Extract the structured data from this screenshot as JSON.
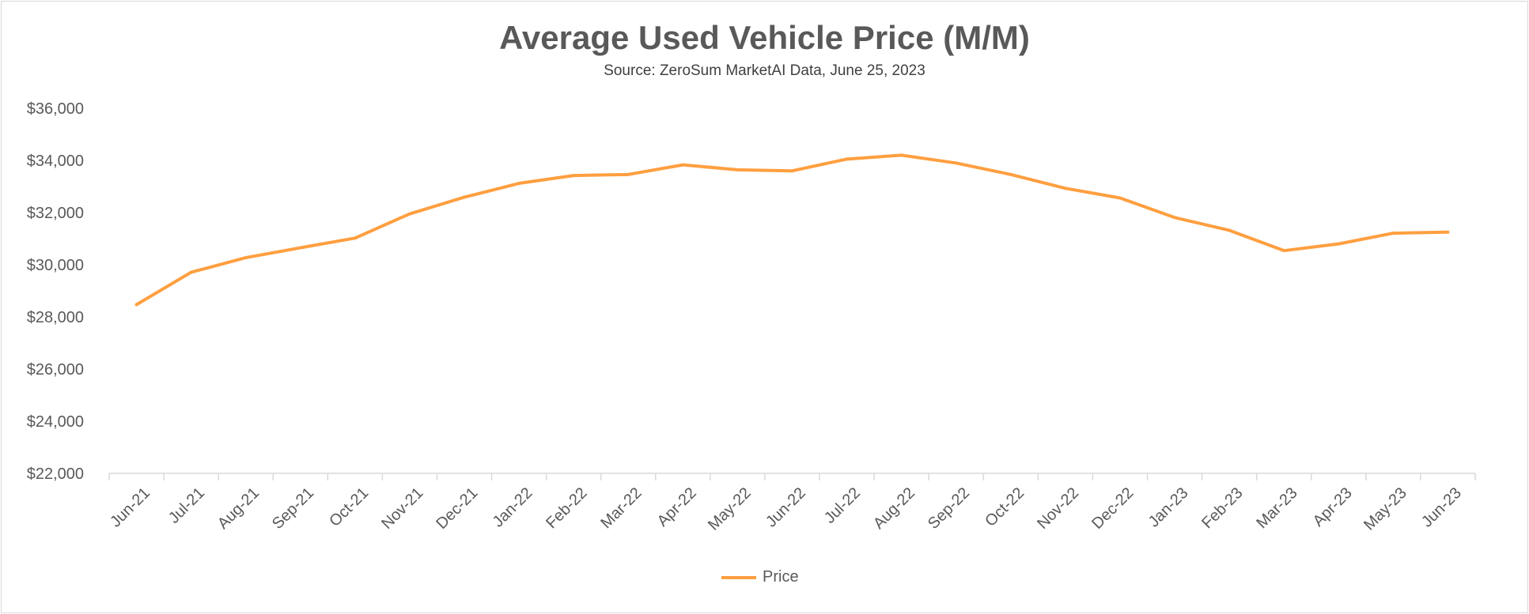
{
  "chart_data": {
    "type": "line",
    "title": "Average Used Vehicle Price (M/M)",
    "subtitle": "Source: ZeroSum MarketAI Data, June 25, 2023",
    "xlabel": "",
    "ylabel": "",
    "ylim": [
      22000,
      36000
    ],
    "yticks": [
      22000,
      24000,
      26000,
      28000,
      30000,
      32000,
      34000,
      36000
    ],
    "ytick_labels": [
      "$22,000",
      "$24,000",
      "$26,000",
      "$28,000",
      "$30,000",
      "$32,000",
      "$34,000",
      "$36,000"
    ],
    "grid": false,
    "legend_position": "bottom",
    "categories": [
      "Jun-21",
      "Jul-21",
      "Aug-21",
      "Sep-21",
      "Oct-21",
      "Nov-21",
      "Dec-21",
      "Jan-22",
      "Feb-22",
      "Mar-22",
      "Apr-22",
      "May-22",
      "Jun-22",
      "Jul-22",
      "Aug-22",
      "Sep-22",
      "Oct-22",
      "Nov-22",
      "Dec-22",
      "Jan-23",
      "Feb-23",
      "Mar-23",
      "Apr-23",
      "May-23",
      "Jun-23"
    ],
    "series": [
      {
        "name": "Price",
        "color": "#ff9f40",
        "values": [
          28470,
          29710,
          30270,
          30650,
          31020,
          31950,
          32590,
          33120,
          33420,
          33460,
          33830,
          33640,
          33600,
          34050,
          34200,
          33900,
          33460,
          32930,
          32560,
          31810,
          31320,
          30540,
          30800,
          31210,
          31250
        ]
      }
    ]
  }
}
